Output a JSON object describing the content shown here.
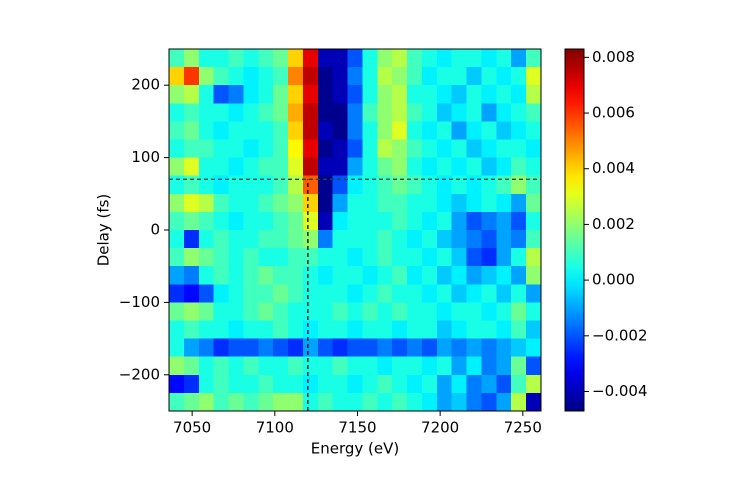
{
  "chart_data": {
    "type": "heatmap",
    "colormap": "jet",
    "x_label": "Energy (eV)",
    "y_label": "Delay (fs)",
    "xlim": [
      7036,
      7261
    ],
    "ylim": [
      -250,
      250
    ],
    "xticks": [
      7050,
      7100,
      7150,
      7200,
      7250
    ],
    "yticks": [
      {
        "value": -200,
        "label": "−200"
      },
      {
        "value": -100,
        "label": "−100"
      },
      0,
      100,
      200
    ],
    "clim": [
      -0.0047,
      0.0083
    ],
    "cticks": [
      {
        "value": -0.004,
        "label": "−0.004"
      },
      {
        "value": -0.002,
        "label": "−0.002"
      },
      {
        "value": 0,
        "label": "0.000"
      },
      0.002,
      0.004,
      0.006,
      0.008
    ],
    "reference_lines": {
      "x": 7120,
      "y": 70
    },
    "x": [
      7040.5,
      7049.5,
      7058.5,
      7067.5,
      7076.5,
      7085.5,
      7094.5,
      7103.5,
      7112.5,
      7121.5,
      7130.5,
      7139.5,
      7148.5,
      7157.5,
      7166.5,
      7175.5,
      7184.5,
      7193.5,
      7202.5,
      7211.5,
      7220.5,
      7229.5,
      7238.5,
      7247.5,
      7256.5
    ],
    "y": [
      237.5,
      212.5,
      187.5,
      162.5,
      137.5,
      112.5,
      87.5,
      62.5,
      37.5,
      12.5,
      -12.5,
      -37.5,
      -62.5,
      -87.5,
      -112.5,
      -137.5,
      -162.5,
      -187.5,
      -212.5,
      -237.5
    ],
    "z": [
      [
        0.001,
        0.002,
        0.0005,
        0.0005,
        0.001,
        0.0005,
        0.001,
        0.0015,
        0.004,
        0.007,
        -0.004,
        -0.004,
        -0.002,
        0.0005,
        0.002,
        0.0025,
        0.001,
        0.0005,
        0,
        0.0005,
        0.0005,
        0,
        0.0005,
        -0.001,
        0.001
      ],
      [
        0.004,
        0.006,
        0.002,
        0.001,
        0.0005,
        0,
        0.0005,
        0.001,
        0.005,
        0.0075,
        -0.0045,
        -0.004,
        -0.0015,
        0.0005,
        0.0025,
        0.002,
        0.001,
        0,
        0.0005,
        0.0005,
        -0.0005,
        0.0005,
        0,
        0.0005,
        0.003
      ],
      [
        0.002,
        0.0025,
        0.0005,
        -0.002,
        -0.0015,
        0,
        0.0005,
        0.0015,
        0.004,
        0.007,
        -0.0045,
        -0.004,
        -0.002,
        0.0005,
        0.002,
        0.0025,
        0.0005,
        0.0005,
        0,
        -0.0005,
        0.0005,
        0,
        0.0005,
        0,
        0.0025
      ],
      [
        0.0005,
        0.001,
        0.0005,
        0.0005,
        0,
        0.0005,
        0.001,
        0.0015,
        0.0045,
        0.0075,
        -0.0045,
        -0.0045,
        -0.0015,
        0.001,
        0.002,
        0.0025,
        0.001,
        0.0005,
        -0.0005,
        0,
        0.0005,
        -0.001,
        0,
        0.0005,
        0.001
      ],
      [
        0.001,
        0.0015,
        0.0005,
        0,
        0.0005,
        0.0005,
        0.0005,
        0.001,
        0.004,
        0.0075,
        -0.004,
        -0.0045,
        -0.0015,
        0.0005,
        0.002,
        0.003,
        0.0005,
        0,
        0.0005,
        -0.001,
        0,
        0.0005,
        -0.0005,
        0,
        0.0005
      ],
      [
        0.0005,
        0.001,
        0.001,
        0.0005,
        0.0005,
        0,
        0.0005,
        0.001,
        0.0035,
        0.007,
        -0.0045,
        -0.004,
        -0.002,
        0.0005,
        0.0025,
        0.002,
        0.001,
        0.0005,
        0,
        0.0005,
        -0.0005,
        0,
        0.0005,
        0.0005,
        0
      ],
      [
        0.002,
        0.003,
        0.0005,
        0.0005,
        0,
        0.0005,
        0.001,
        0.001,
        0.003,
        0.0075,
        -0.004,
        -0.004,
        -0.001,
        0.0005,
        0.0015,
        0.002,
        0.0005,
        0,
        0.0005,
        0,
        0.0005,
        -0.0005,
        0,
        0.001,
        0.0005
      ],
      [
        0.0005,
        0.001,
        0.0005,
        0,
        0.0005,
        0.0005,
        0.0005,
        0.001,
        0.0025,
        0.0055,
        -0.0045,
        -0.002,
        0,
        0.0005,
        0.001,
        0.0015,
        0.001,
        0.0005,
        0,
        0.0005,
        0,
        0.0005,
        0.001,
        0.002,
        0.001
      ],
      [
        0.002,
        0.003,
        0.0025,
        0.001,
        0.0005,
        0.0005,
        0.001,
        0.0015,
        0.002,
        0.004,
        -0.0045,
        -0.001,
        0.0005,
        0.0005,
        0.001,
        0.001,
        0.0005,
        0.0005,
        0,
        -0.0005,
        0,
        0.0005,
        0,
        -0.001,
        0.0015
      ],
      [
        0.001,
        0.0015,
        0.001,
        0.0005,
        0,
        0.0005,
        0.0005,
        0.001,
        0.0015,
        0.003,
        -0.004,
        0,
        0.0005,
        0.0005,
        0.0005,
        0.001,
        0.0005,
        0,
        0.0005,
        -0.001,
        -0.002,
        -0.0015,
        -0.001,
        -0.002,
        0.0005
      ],
      [
        0.0005,
        -0.0025,
        0.0005,
        0.001,
        0.0005,
        0.0005,
        0.001,
        0.001,
        0.0015,
        0.002,
        -0.0015,
        0.0005,
        0.0005,
        0.0005,
        0.001,
        0.0005,
        0,
        0.0005,
        -0.0005,
        -0.001,
        -0.0015,
        -0.002,
        -0.001,
        -0.0015,
        0.001
      ],
      [
        0.001,
        0.002,
        0.0015,
        0.001,
        0.0005,
        0.001,
        0.0005,
        0.0005,
        0.001,
        0.001,
        0.0005,
        0.0005,
        0,
        0.0005,
        0.001,
        0.0005,
        0.0005,
        0,
        0.0005,
        -0.0005,
        -0.002,
        -0.0025,
        -0.001,
        0.0005,
        0.0025
      ],
      [
        -0.001,
        -0.0015,
        0.0005,
        0.001,
        0.0005,
        0.001,
        0.0015,
        0.001,
        0.001,
        0.0005,
        0,
        0.0005,
        0.0005,
        0,
        0.0005,
        0.001,
        0,
        0.0005,
        -0.0005,
        0,
        -0.001,
        -0.0005,
        0,
        -0.001,
        0.002
      ],
      [
        -0.0025,
        -0.003,
        -0.002,
        0,
        0.0005,
        0.001,
        0.001,
        0.0015,
        0.001,
        0.0005,
        0.0005,
        0.0005,
        0,
        0.0005,
        0.001,
        0.0005,
        0.0005,
        0,
        0.0005,
        -0.0005,
        0,
        0.0005,
        -0.0005,
        0.0005,
        -0.001
      ],
      [
        0.0015,
        0.002,
        0.0015,
        0.0005,
        0.0005,
        0.001,
        0.0015,
        0.001,
        0.0005,
        0.0005,
        0.0005,
        0.001,
        0.0005,
        0.001,
        0.0005,
        0.001,
        0.0005,
        0.0005,
        0,
        0.0005,
        0.0005,
        0,
        0.0005,
        0.0015,
        0.0005
      ],
      [
        0.0005,
        0.001,
        0.0005,
        0.0005,
        0,
        0.0005,
        0.0005,
        0.001,
        0.0005,
        0,
        0.0005,
        0.0005,
        0,
        0.0005,
        0.0005,
        0,
        0.0005,
        0.0005,
        -0.0005,
        0,
        0.0005,
        0.0005,
        0,
        0.001,
        -0.0005
      ],
      [
        0.0005,
        -0.001,
        -0.0015,
        -0.0025,
        -0.002,
        -0.002,
        -0.0015,
        -0.002,
        -0.0025,
        -0.001,
        -0.002,
        -0.0025,
        -0.002,
        -0.002,
        -0.0015,
        -0.002,
        -0.0015,
        -0.002,
        -0.001,
        -0.0015,
        -0.001,
        -0.0015,
        -0.001,
        -0.0005,
        0
      ],
      [
        0.002,
        0.0015,
        0.0005,
        0.001,
        0.0005,
        0.001,
        0.0005,
        0.0005,
        0.001,
        0.0005,
        0.0005,
        0.001,
        0.0005,
        0.0005,
        0,
        0.0005,
        0.0005,
        0,
        0.0005,
        -0.001,
        0,
        -0.0015,
        -0.001,
        0.0015,
        -0.002
      ],
      [
        -0.003,
        -0.0025,
        0.0005,
        0.001,
        0.0005,
        0.0005,
        0.001,
        0.0005,
        0.0005,
        0,
        0.0005,
        0.0005,
        0,
        0.0005,
        0.001,
        0.0005,
        0,
        0.0005,
        -0.001,
        0,
        -0.0015,
        -0.001,
        -0.002,
        0.001,
        0.0025
      ],
      [
        0.001,
        0.0015,
        0.002,
        0.001,
        0.0015,
        0.001,
        0.0015,
        0.002,
        0.002,
        0.0005,
        0.001,
        0.0005,
        0.0005,
        0.001,
        0.0005,
        0.001,
        0.0005,
        0,
        -0.001,
        -0.0005,
        -0.0015,
        -0.002,
        -0.001,
        0.0025,
        -0.004
      ]
    ]
  }
}
